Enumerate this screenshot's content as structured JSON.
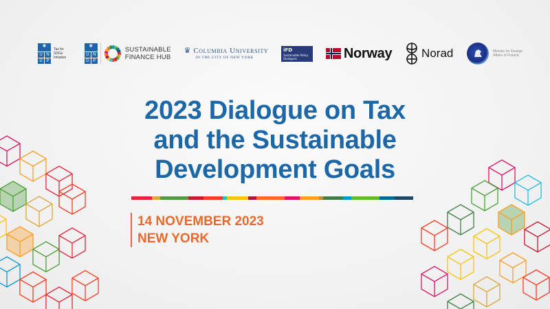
{
  "logos": {
    "undp_tax": {
      "acronym": [
        "U",
        "N",
        "D",
        "P"
      ],
      "caption": "Tax for SDGs Initiative"
    },
    "undp_sfh": {
      "acronym": [
        "U",
        "N",
        "D",
        "P"
      ],
      "caption_line1": "SUSTAINABLE",
      "caption_line2": "FINANCE HUB"
    },
    "columbia": {
      "name": "Columbia University",
      "subtitle": "IN THE CITY OF NEW YORK"
    },
    "ifd": {
      "name": "iFD",
      "caption": "Sustainable Policy Dialogues"
    },
    "norway": {
      "name": "Norway"
    },
    "norad": {
      "name": "Norad"
    },
    "finland": {
      "caption_line1": "Ministry for Foreign",
      "caption_line2": "Affairs of Finland"
    }
  },
  "title": {
    "line1": "2023 Dialogue on Tax",
    "line2": "and the Sustainable",
    "line3": "Development Goals"
  },
  "event": {
    "date": "14 NOVEMBER 2023",
    "location": "NEW YORK"
  },
  "colors": {
    "title": "#1b67a8",
    "accent": "#e8692b",
    "sdg_bar": [
      "#e5243b",
      "#dda63a",
      "#4c9f38",
      "#c5192d",
      "#ff3a21",
      "#26bde2",
      "#fcc30b",
      "#a21942",
      "#fd6925",
      "#dd1367",
      "#fd9d24",
      "#bf8b2e",
      "#3f7e44",
      "#0a97d9",
      "#56c02b",
      "#00689d",
      "#19486a"
    ]
  }
}
